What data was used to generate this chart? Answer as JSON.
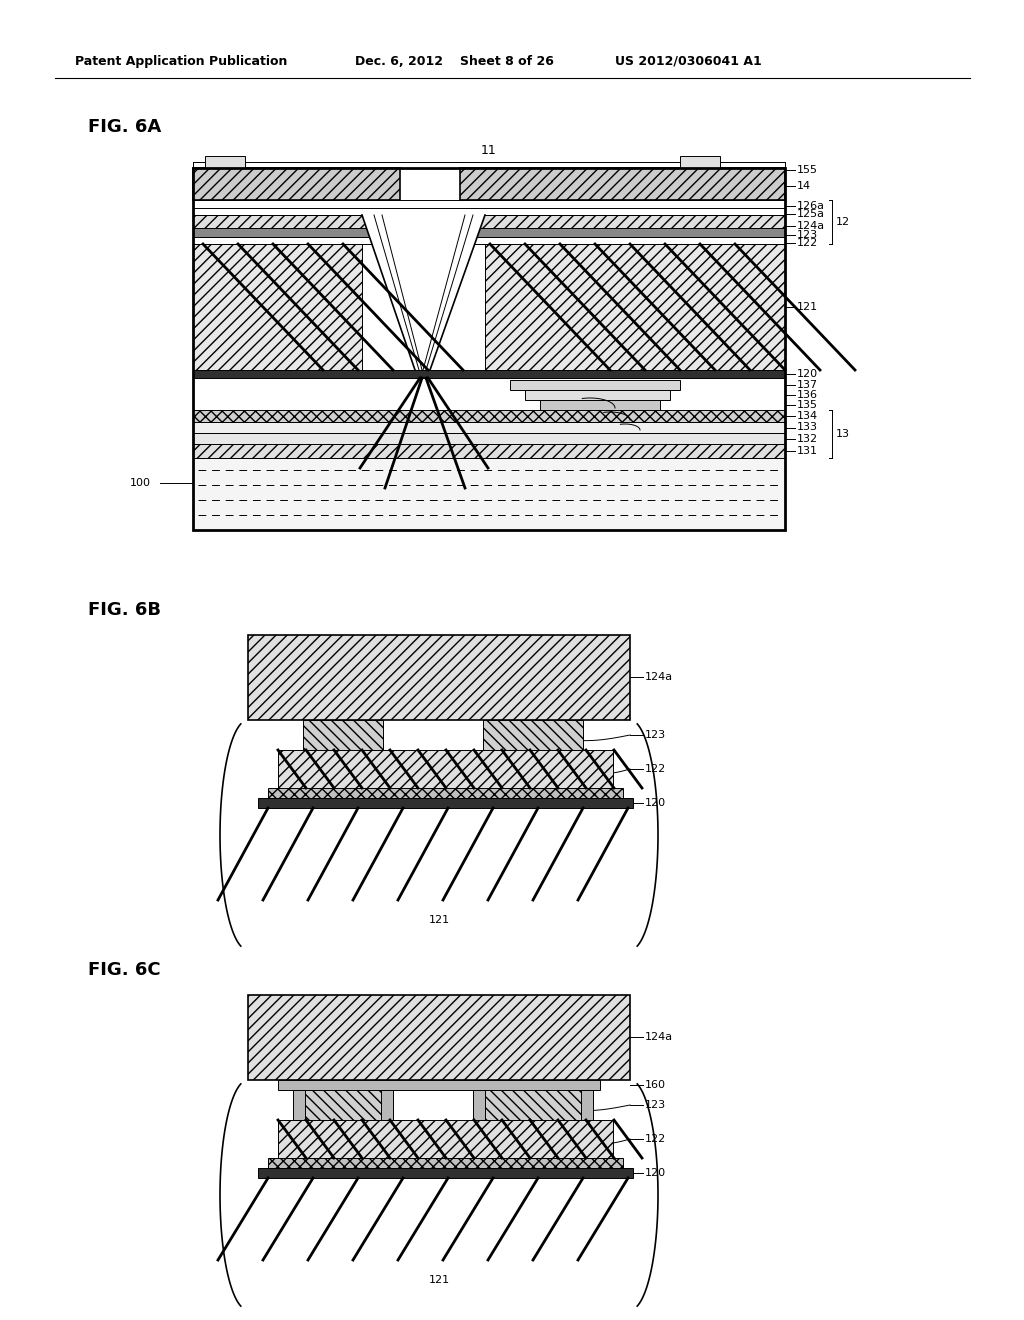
{
  "background_color": "#ffffff",
  "header_text": "Patent Application Publication",
  "header_date": "Dec. 6, 2012",
  "header_sheet": "Sheet 8 of 26",
  "header_patent": "US 2012/0306041 A1",
  "fig6a_label": "FIG. 6A",
  "fig6b_label": "FIG. 6B",
  "fig6c_label": "FIG. 6C",
  "line_color": "#000000",
  "hatch_color": "#000000",
  "fill_color_light": "#f0f0f0",
  "fill_color_white": "#ffffff"
}
